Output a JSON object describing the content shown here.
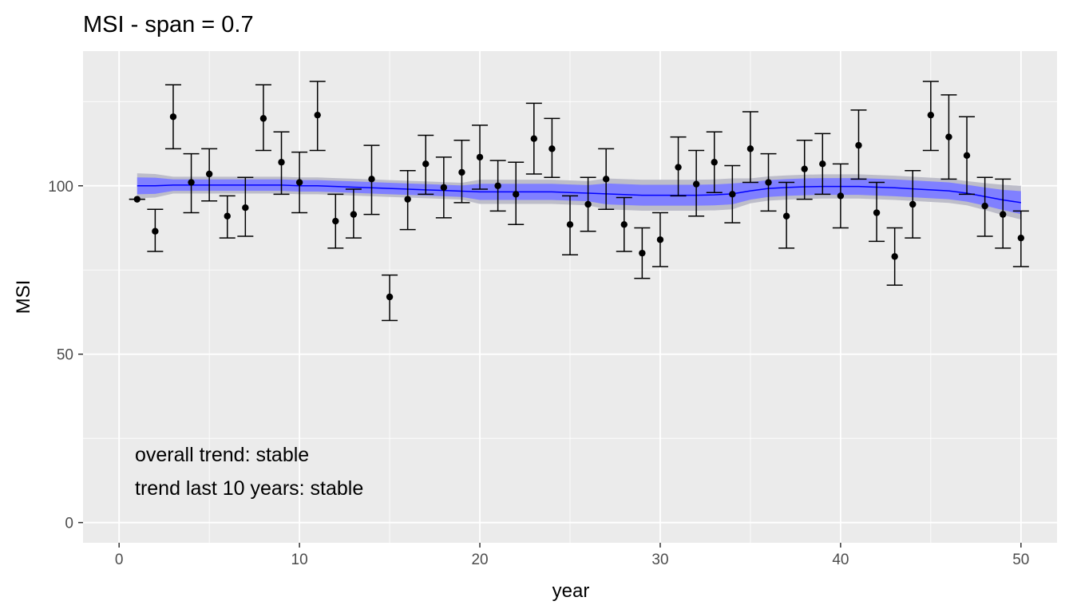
{
  "chart_data": {
    "type": "scatter",
    "title": "MSI - span = 0.7",
    "xlabel": "year",
    "ylabel": "MSI",
    "xlim": [
      -2,
      52
    ],
    "ylim": [
      -6,
      140
    ],
    "x_ticks": [
      0,
      10,
      20,
      30,
      40,
      50
    ],
    "y_ticks": [
      0,
      50,
      100
    ],
    "grid": true,
    "colors": {
      "panel": "#ebebeb",
      "grid": "#ffffff",
      "points": "#000000",
      "trend_line": "#0000ff",
      "band_outer": "#bdbdc9",
      "band_inner": "#8080ff"
    },
    "annotations": [
      "overall trend: stable",
      "trend last 10 years: stable"
    ],
    "series": [
      {
        "type": "points_with_errorbars",
        "x": [
          1,
          2,
          3,
          4,
          5,
          6,
          7,
          8,
          9,
          10,
          11,
          12,
          13,
          14,
          15,
          16,
          17,
          18,
          19,
          20,
          21,
          22,
          23,
          24,
          25,
          26,
          27,
          28,
          29,
          30,
          31,
          32,
          33,
          34,
          35,
          36,
          37,
          38,
          39,
          40,
          41,
          42,
          43,
          44,
          45,
          46,
          47,
          48,
          49,
          50
        ],
        "y": [
          96,
          86.5,
          120.5,
          101,
          103.5,
          91,
          93.5,
          120,
          107,
          101,
          121,
          89.5,
          91.5,
          102,
          67,
          96,
          106.5,
          99.5,
          104,
          108.5,
          100,
          97.5,
          114,
          111,
          88.5,
          94.5,
          102,
          88.5,
          80,
          84,
          105.5,
          100.5,
          107,
          97.5,
          111,
          101,
          91,
          105,
          106.5,
          97,
          112,
          92,
          79,
          94.5,
          121,
          114.5,
          109,
          94,
          91.5,
          84.5
        ],
        "ymin": [
          96,
          80.5,
          111,
          92,
          95.5,
          84.5,
          85,
          110.5,
          97.5,
          92,
          110.5,
          81.5,
          84.5,
          91.5,
          60,
          87,
          97.5,
          90.5,
          95,
          99,
          92.5,
          88.5,
          103.5,
          102.5,
          79.5,
          86.5,
          93,
          80.5,
          72.5,
          76,
          97,
          91,
          98,
          89,
          101,
          92.5,
          81.5,
          96,
          97.5,
          87.5,
          102,
          83.5,
          70.5,
          84.5,
          110.5,
          102,
          97.5,
          85,
          81.5,
          76
        ],
        "ymax": [
          96,
          93,
          130,
          109.5,
          111,
          97,
          102.5,
          130,
          116,
          110,
          131,
          97.5,
          99,
          112,
          73.5,
          104.5,
          115,
          108.5,
          113.5,
          118,
          107.5,
          107,
          124.5,
          120,
          97,
          102.5,
          111,
          96.5,
          87.5,
          92,
          114.5,
          110.5,
          116,
          106,
          122,
          109.5,
          101,
          113.5,
          115.5,
          106.5,
          122.5,
          101,
          87.5,
          104.5,
          131,
          127,
          120.5,
          102.5,
          102,
          92.5
        ]
      },
      {
        "type": "smooth_trend",
        "x": [
          1,
          2,
          3,
          4,
          5,
          6,
          7,
          8,
          9,
          10,
          11,
          12,
          13,
          14,
          15,
          16,
          17,
          18,
          19,
          20,
          21,
          22,
          23,
          24,
          25,
          26,
          27,
          28,
          29,
          30,
          31,
          32,
          33,
          34,
          35,
          36,
          37,
          38,
          39,
          40,
          41,
          42,
          43,
          44,
          45,
          46,
          47,
          48,
          49,
          50
        ],
        "y": [
          100,
          100,
          100.2,
          100.2,
          100.2,
          100.2,
          100.2,
          100.2,
          100.2,
          100,
          100,
          99.8,
          99.6,
          99.4,
          99.2,
          99,
          98.8,
          98.6,
          98.4,
          98.2,
          98.2,
          98.2,
          98.2,
          98.2,
          98,
          97.8,
          97.6,
          97.4,
          97.2,
          97.2,
          97.2,
          97.2,
          97.3,
          97.6,
          98.5,
          99.2,
          99.5,
          99.7,
          99.8,
          99.8,
          99.8,
          99.6,
          99.4,
          99.1,
          98.8,
          98.5,
          97.8,
          96.8,
          95.8,
          95
        ],
        "band_outer_lo": [
          96.3,
          96.5,
          97.7,
          97.7,
          97.7,
          97.7,
          97.7,
          97.7,
          97.7,
          97.5,
          97.5,
          97.3,
          97.1,
          96.9,
          96.7,
          96.5,
          96.3,
          96.1,
          95.9,
          94.6,
          94.6,
          94.6,
          94.6,
          94.6,
          94.4,
          94.2,
          93,
          92.8,
          92.6,
          92.6,
          92.6,
          92.6,
          92.7,
          93,
          94.8,
          95.6,
          95.9,
          96.1,
          96.2,
          96.2,
          96.2,
          96,
          95.8,
          95.5,
          95.2,
          94.9,
          94.2,
          92.8,
          91.3,
          90
        ],
        "band_outer_hi": [
          103.7,
          103.5,
          102.7,
          102.7,
          102.7,
          102.7,
          102.7,
          102.7,
          102.7,
          102.5,
          102.5,
          102.3,
          102.1,
          101.9,
          101.7,
          101.5,
          101.3,
          101.1,
          100.9,
          101.8,
          101.8,
          101.8,
          101.8,
          101.8,
          101.6,
          101.4,
          102.2,
          102,
          101.8,
          101.8,
          101.8,
          101.8,
          101.9,
          102.2,
          102.2,
          102.8,
          103.1,
          103.3,
          103.4,
          103.4,
          103.4,
          103.2,
          103,
          102.7,
          102.4,
          102.1,
          101.4,
          100.8,
          100.3,
          100
        ],
        "band_inner_lo": [
          97.5,
          97.6,
          98.5,
          98.5,
          98.5,
          98.5,
          98.5,
          98.5,
          98.5,
          98.3,
          98.3,
          98.1,
          97.9,
          97.7,
          97.5,
          97.3,
          97.1,
          96.9,
          96.7,
          95.8,
          95.8,
          95.8,
          95.8,
          95.8,
          95.6,
          95.4,
          94.5,
          94.3,
          94.1,
          94.1,
          94.1,
          94.1,
          94.2,
          94.5,
          95.9,
          96.7,
          97,
          97.2,
          97.3,
          97.3,
          97.3,
          97.1,
          96.9,
          96.6,
          96.3,
          96,
          95.3,
          94.1,
          92.8,
          91.6
        ],
        "band_inner_hi": [
          102.5,
          102.4,
          101.9,
          101.9,
          101.9,
          101.9,
          101.9,
          101.9,
          101.9,
          101.7,
          101.7,
          101.5,
          101.3,
          101.1,
          100.9,
          100.7,
          100.5,
          100.3,
          100.1,
          100.6,
          100.6,
          100.6,
          100.6,
          100.6,
          100.4,
          100.2,
          100.7,
          100.5,
          100.3,
          100.3,
          100.3,
          100.3,
          100.4,
          100.7,
          101.1,
          101.7,
          102,
          102.2,
          102.3,
          102.3,
          102.3,
          102.1,
          101.9,
          101.6,
          101.3,
          101,
          100.3,
          99.5,
          98.8,
          98.4
        ]
      }
    ]
  }
}
